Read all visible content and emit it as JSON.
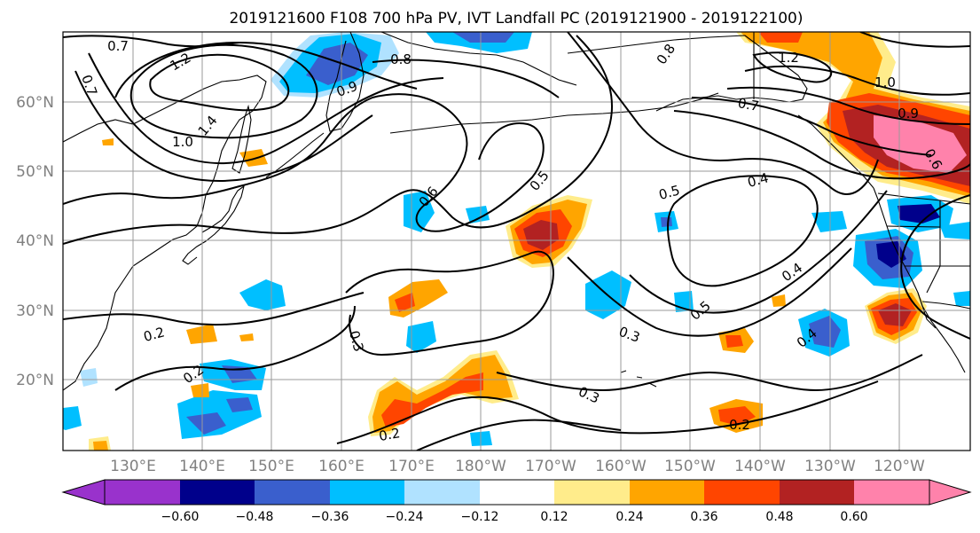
{
  "title": "2019121600 F108 700 hPa PV, IVT Landfall PC (2019121900 - 2019122100)",
  "lat_labels": [
    "60°N",
    "50°N",
    "40°N",
    "30°N",
    "20°N"
  ],
  "lon_labels": [
    "130°E",
    "140°E",
    "150°E",
    "160°E",
    "170°E",
    "180°W",
    "170°W",
    "160°W",
    "150°W",
    "140°W",
    "130°W",
    "120°W"
  ],
  "colorbar": {
    "ticks": [
      "−0.60",
      "−0.48",
      "−0.36",
      "−0.24",
      "−0.12",
      "0.12",
      "0.24",
      "0.36",
      "0.48",
      "0.60"
    ],
    "colors": [
      "#9932CC",
      "#00008B",
      "#3A5FCD",
      "#00BFFF",
      "#B0E2FF",
      "#FFFFFF",
      "#FFEC8B",
      "#FFA500",
      "#FF4500",
      "#B22222",
      "#FF82AB"
    ]
  },
  "contour_labels": [
    "0.7",
    "1.2",
    "0.7",
    "0.8",
    "0.9",
    "1.4",
    "1.0",
    "0.6",
    "0.5",
    "0.5",
    "0.4",
    "0.8",
    "1.2",
    "1.0",
    "0.9",
    "0.7",
    "0.6",
    "0.4",
    "0.5",
    "0.3",
    "0.3",
    "0.2",
    "0.2",
    "0.3",
    "0.2",
    "0.4",
    "0.2"
  ],
  "colors": {
    "contour": "#000000",
    "grid": "#9a9a9a",
    "tick_text": "#808080"
  }
}
